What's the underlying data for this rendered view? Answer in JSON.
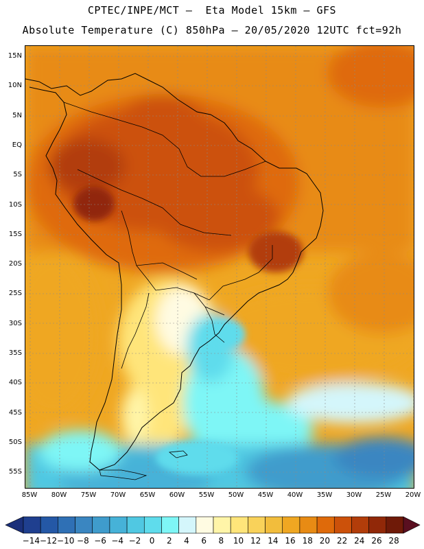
{
  "title_line1": "CPTEC/INPE/MCT –  Eta Model 15km – GFS",
  "title_line2": "Absolute Temperature (C) 850hPa – 20/05/2020 12UTC fct=92h",
  "lat_labels": [
    "15N",
    "10N",
    "5N",
    "EQ",
    "5S",
    "10S",
    "15S",
    "20S",
    "25S",
    "30S",
    "35S",
    "40S",
    "45S",
    "50S",
    "55S"
  ],
  "lon_labels": [
    "85W",
    "80W",
    "75W",
    "70W",
    "65W",
    "60W",
    "55W",
    "50W",
    "45W",
    "40W",
    "35W",
    "30W",
    "25W",
    "20W"
  ],
  "colorbar": {
    "labels": [
      "-14",
      "-12",
      "-10",
      "-8",
      "-6",
      "-4",
      "-2",
      "0",
      "2",
      "4",
      "6",
      "8",
      "10",
      "12",
      "14",
      "16",
      "18",
      "20",
      "22",
      "24",
      "26",
      "28"
    ],
    "colors": [
      "#1f3f8f",
      "#2458a6",
      "#2f70b5",
      "#3a86c1",
      "#3f9ccc",
      "#46b2d8",
      "#50c8e2",
      "#5fdcec",
      "#7ef6f6",
      "#d4f6fb",
      "#fffbe2",
      "#fff5a8",
      "#ffe57a",
      "#f9d25a",
      "#f2bd3c",
      "#efa722",
      "#e88b14",
      "#df6a0a",
      "#cc510a",
      "#b23d0a",
      "#912808",
      "#6f1a08"
    ],
    "underflow_color": "#1a2f7a",
    "overflow_color": "#5a0f20"
  }
}
